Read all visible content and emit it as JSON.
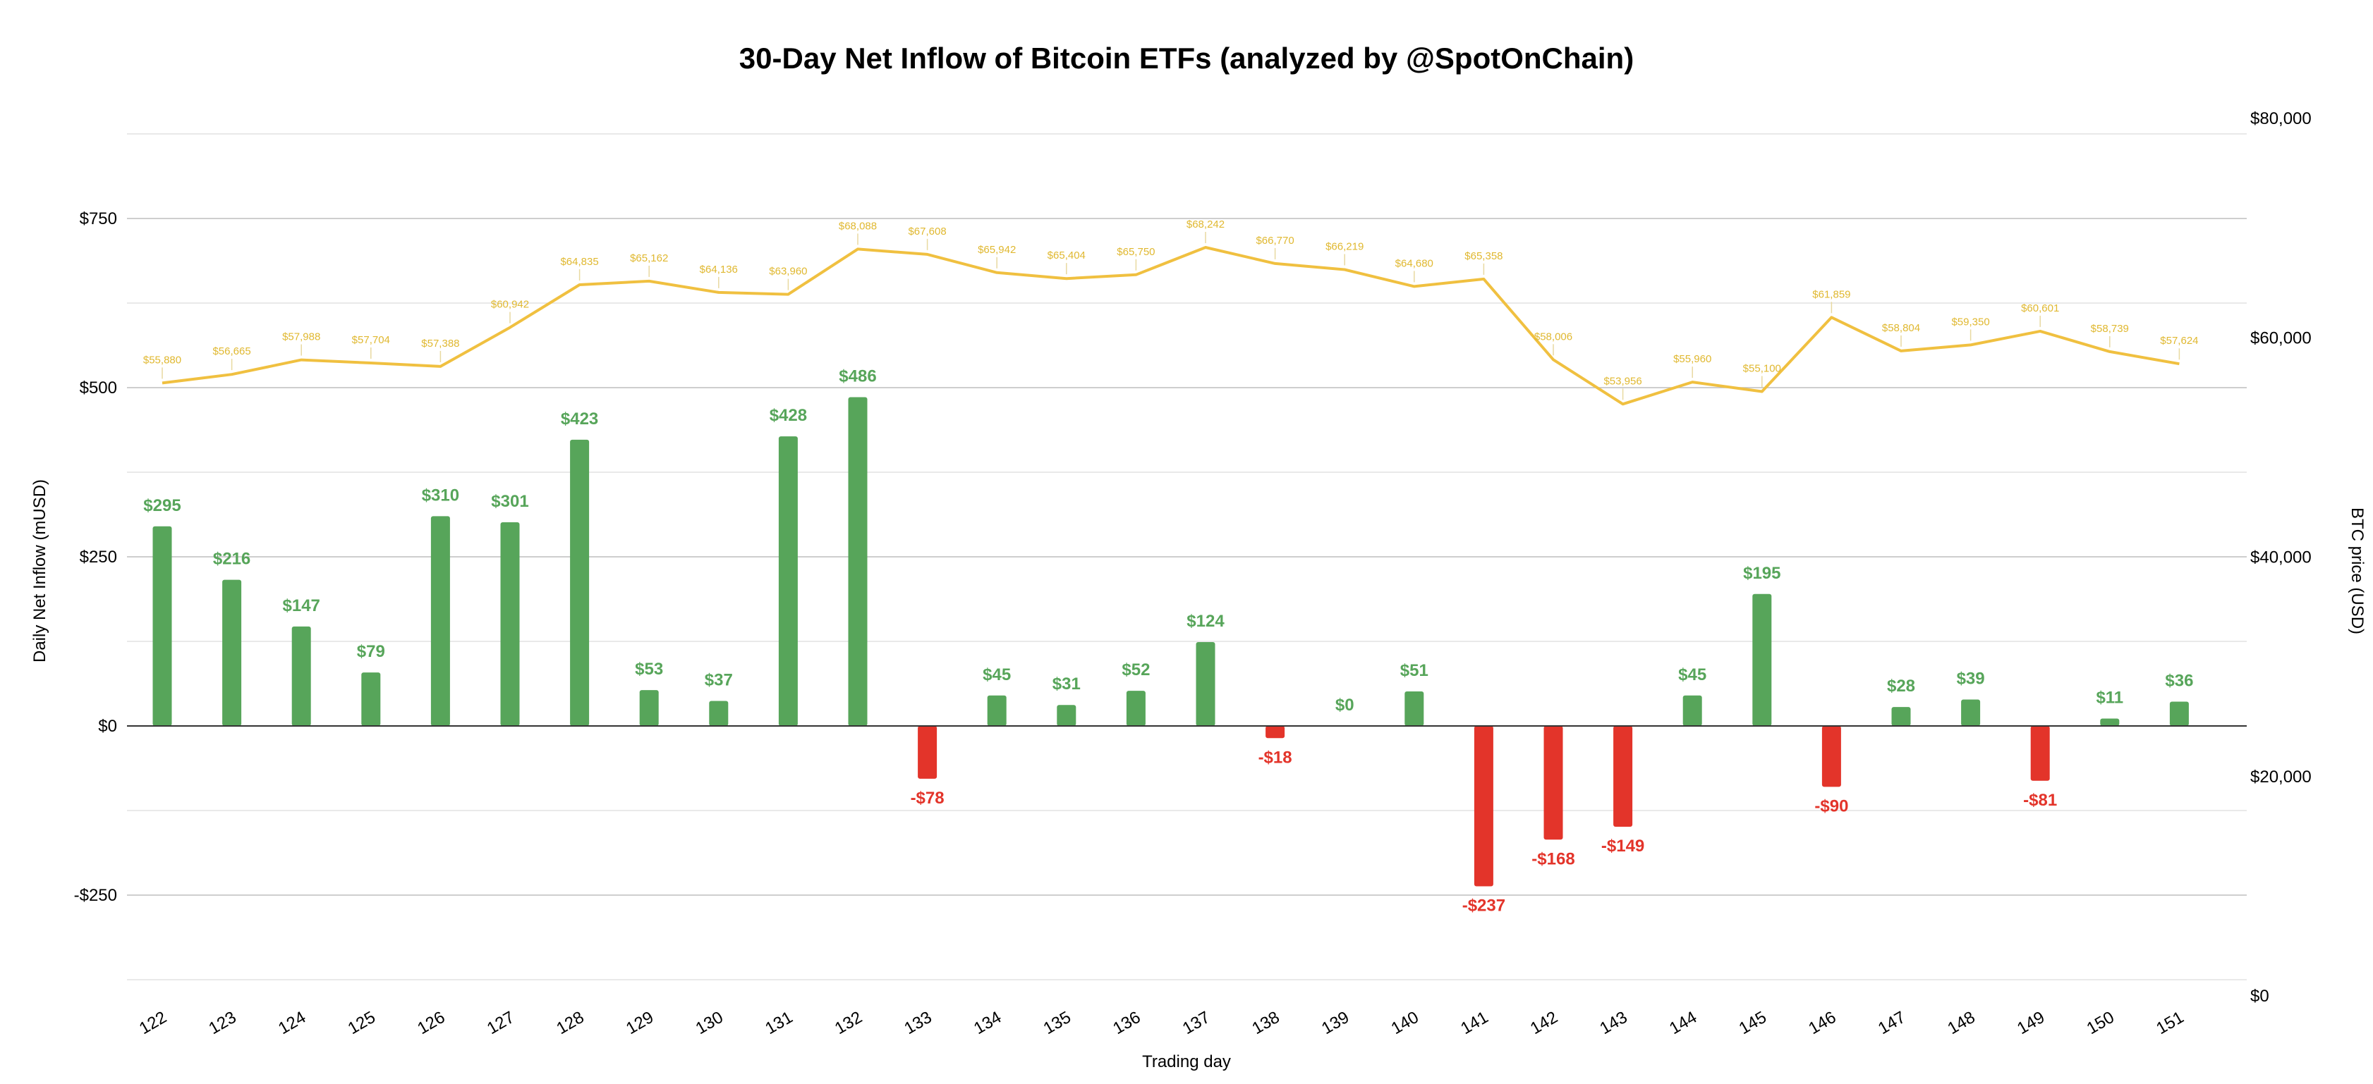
{
  "chart_data": {
    "type": "bar",
    "title": "30-Day Net Inflow of Bitcoin ETFs (analyzed by @SpotOnChain)",
    "xlabel": "Trading day",
    "ylabel": "Daily Net Inflow (mUSD)",
    "y2label": "BTC price (USD)",
    "ylim": [
      -350,
      750
    ],
    "y_ticks": [
      750,
      500,
      250,
      0,
      -250
    ],
    "y_tick_labels": [
      "$750",
      "$500",
      "$250",
      "$0",
      "-$250"
    ],
    "y2lim": [
      0,
      80000
    ],
    "y2_ticks": [
      80000,
      60000,
      40000,
      20000,
      0
    ],
    "y2_tick_labels": [
      "$80,000",
      "$60,000",
      "$40,000",
      "$20,000",
      "$0"
    ],
    "grid": true,
    "colors": {
      "positive": "#57a55a",
      "negative": "#e3342a",
      "price_line": "#f0c040",
      "price_label": "#e0b830",
      "gridline": "#d9d9d9",
      "zero_line": "#333333"
    },
    "categories": [
      "122",
      "123",
      "124",
      "125",
      "126",
      "127",
      "128",
      "129",
      "130",
      "131",
      "132",
      "133",
      "134",
      "135",
      "136",
      "137",
      "138",
      "139",
      "140",
      "141",
      "142",
      "143",
      "144",
      "145",
      "146",
      "147",
      "148",
      "149",
      "150",
      "151"
    ],
    "series": [
      {
        "type": "bar",
        "axis": "left",
        "values": [
          295,
          216,
          147,
          79,
          310,
          301,
          423,
          53,
          37,
          428,
          486,
          -78,
          45,
          31,
          52,
          124,
          -18,
          0,
          51,
          -237,
          -168,
          -149,
          45,
          195,
          -90,
          28,
          39,
          -81,
          11,
          36
        ],
        "labels": [
          "$295",
          "$216",
          "$147",
          "$79",
          "$310",
          "$301",
          "$423",
          "$53",
          "$37",
          "$428",
          "$486",
          "-$78",
          "$45",
          "$31",
          "$52",
          "$124",
          "-$18",
          "$0",
          "$51",
          "-$237",
          "-$168",
          "-$149",
          "$45",
          "$195",
          "-$90",
          "$28",
          "$39",
          "-$81",
          "$11",
          "$36"
        ]
      },
      {
        "type": "line",
        "axis": "right",
        "values": [
          55880,
          56665,
          57988,
          57704,
          57388,
          60942,
          64835,
          65162,
          64136,
          63960,
          68088,
          67608,
          65942,
          65404,
          65750,
          68242,
          66770,
          66219,
          64680,
          65358,
          58006,
          53956,
          55960,
          55100,
          61859,
          58804,
          59350,
          60601,
          58739,
          57624
        ],
        "labels": [
          "$55,880",
          "$56,665",
          "$57,988",
          "$57,704",
          "$57,388",
          "$60,942",
          "$64,835",
          "$65,162",
          "$64,136",
          "$63,960",
          "$68,088",
          "$67,608",
          "$65,942",
          "$65,404",
          "$65,750",
          "$68,242",
          "$66,770",
          "$66,219",
          "$64,680",
          "$65,358",
          "$58,006",
          "$53,956",
          "$55,960",
          "$55,100",
          "$61,859",
          "$58,804",
          "$59,350",
          "$60,601",
          "$58,739",
          "$57,624"
        ]
      }
    ]
  }
}
